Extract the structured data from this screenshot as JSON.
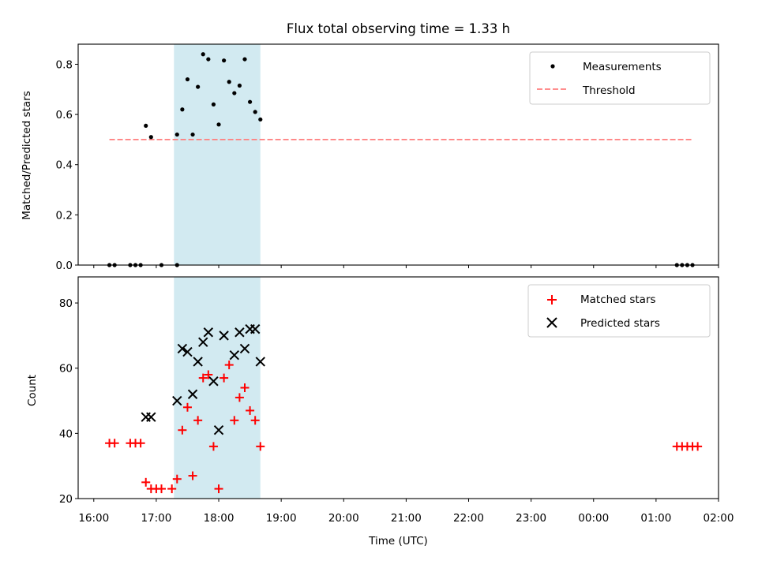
{
  "title": "Flux total observing time = 1.33 h",
  "colors": {
    "threshold": "#ff7f7f",
    "band": "#add8e6",
    "measurement": "#000000",
    "matched": "#ff0000",
    "predicted": "#000000"
  },
  "chart_data": [
    {
      "type": "scatter",
      "panel": "top",
      "title": "Flux total observing time = 1.33 h",
      "xlabel": "",
      "ylabel": "Matched/Predicted stars",
      "ylim": [
        0,
        0.88
      ],
      "yticks": [
        0.0,
        0.2,
        0.4,
        0.6,
        0.8
      ],
      "ytick_labels": [
        "0.0",
        "0.2",
        "0.4",
        "0.6",
        "0.8"
      ],
      "legend_position": "upper right",
      "grid": false,
      "shaded_span": [
        "17:17",
        "18:40"
      ],
      "threshold": {
        "name": "Threshold",
        "y": 0.5,
        "x": [
          "16:15",
          "01:35"
        ]
      },
      "series": [
        {
          "name": "Measurements",
          "marker": "dot",
          "x": [
            "16:15",
            "16:20",
            "16:35",
            "16:40",
            "16:45",
            "16:50",
            "16:55",
            "17:05",
            "17:20",
            "17:20",
            "17:25",
            "17:30",
            "17:35",
            "17:40",
            "17:45",
            "17:50",
            "17:55",
            "18:00",
            "18:05",
            "18:10",
            "18:15",
            "18:20",
            "18:25",
            "18:30",
            "18:35",
            "18:40",
            "01:20",
            "01:25",
            "01:30",
            "01:35"
          ],
          "y": [
            0,
            0,
            0,
            0,
            0,
            0.555,
            0.51,
            0,
            0,
            0.52,
            0.62,
            0.74,
            0.52,
            0.71,
            0.84,
            0.82,
            0.64,
            0.56,
            0.815,
            0.73,
            0.685,
            0.715,
            0.82,
            0.65,
            0.61,
            0.58,
            0,
            0,
            0,
            0
          ]
        }
      ]
    },
    {
      "type": "scatter",
      "panel": "bottom",
      "xlabel": "Time (UTC)",
      "ylabel": "Count",
      "ylim": [
        20,
        88
      ],
      "yticks": [
        20,
        40,
        60,
        80
      ],
      "ytick_labels": [
        "20",
        "40",
        "60",
        "80"
      ],
      "xlim": [
        "15:45",
        "02:00"
      ],
      "xticks": [
        "16:00",
        "17:00",
        "18:00",
        "19:00",
        "20:00",
        "21:00",
        "22:00",
        "23:00",
        "00:00",
        "01:00",
        "02:00"
      ],
      "legend_position": "upper right",
      "grid": false,
      "shaded_span": [
        "17:17",
        "18:40"
      ],
      "series": [
        {
          "name": "Matched stars",
          "marker": "plus",
          "x": [
            "16:15",
            "16:20",
            "16:35",
            "16:40",
            "16:45",
            "16:50",
            "16:55",
            "17:00",
            "17:05",
            "17:15",
            "17:20",
            "17:25",
            "17:30",
            "17:35",
            "17:40",
            "17:45",
            "17:50",
            "17:55",
            "18:00",
            "18:05",
            "18:10",
            "18:15",
            "18:20",
            "18:25",
            "18:30",
            "18:35",
            "18:40",
            "01:20",
            "01:25",
            "01:30",
            "01:35",
            "01:40"
          ],
          "y": [
            37,
            37,
            37,
            37,
            37,
            25,
            23,
            23,
            23,
            23,
            26,
            41,
            48,
            27,
            44,
            57,
            58,
            36,
            23,
            57,
            61,
            44,
            51,
            54,
            47,
            44,
            36,
            36,
            36,
            36,
            36,
            36
          ]
        },
        {
          "name": "Predicted stars",
          "marker": "x",
          "x": [
            "16:50",
            "16:55",
            "17:20",
            "17:25",
            "17:30",
            "17:35",
            "17:40",
            "17:45",
            "17:50",
            "17:55",
            "18:00",
            "18:05",
            "18:15",
            "18:20",
            "18:25",
            "18:30",
            "18:35",
            "18:40"
          ],
          "y": [
            45,
            45,
            50,
            66,
            65,
            52,
            62,
            68,
            71,
            56,
            41,
            70,
            64,
            71,
            66,
            72,
            72,
            62
          ]
        }
      ]
    }
  ]
}
